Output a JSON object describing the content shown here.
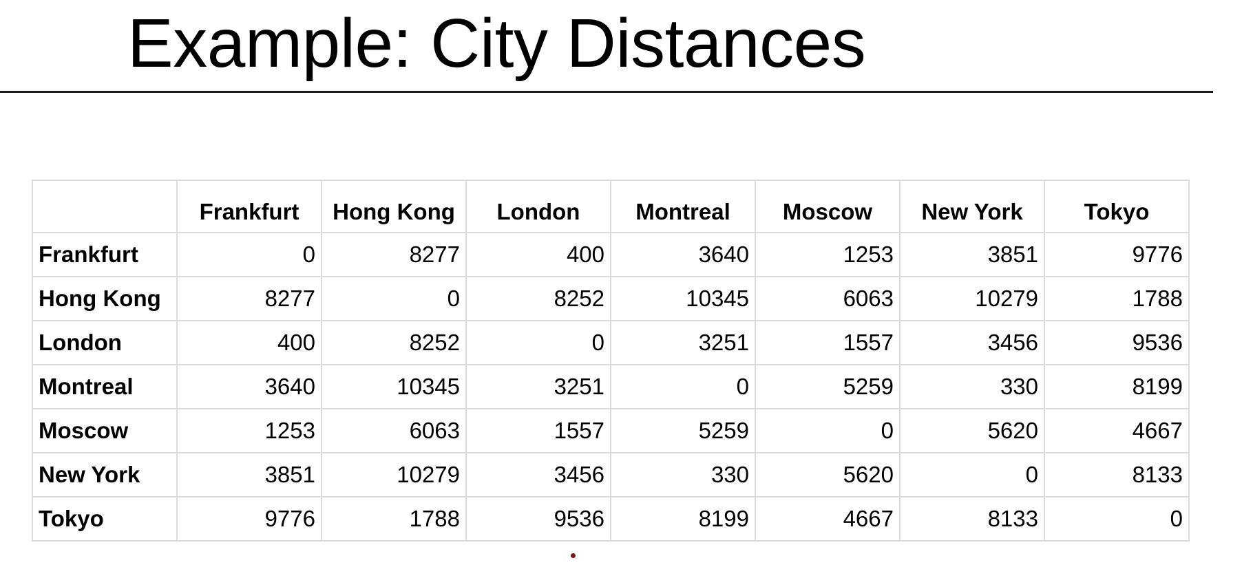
{
  "slide": {
    "title": "Example: City Distances"
  },
  "table": {
    "corner": "",
    "columns": [
      "Frankfurt",
      "Hong Kong",
      "London",
      "Montreal",
      "Moscow",
      "New York",
      "Tokyo"
    ],
    "rows": [
      {
        "label": "Frankfurt",
        "values": [
          "0",
          "8277",
          "400",
          "3640",
          "1253",
          "3851",
          "9776"
        ]
      },
      {
        "label": "Hong Kong",
        "values": [
          "8277",
          "0",
          "8252",
          "10345",
          "6063",
          "10279",
          "1788"
        ]
      },
      {
        "label": "London",
        "values": [
          "400",
          "8252",
          "0",
          "3251",
          "1557",
          "3456",
          "9536"
        ]
      },
      {
        "label": "Montreal",
        "values": [
          "3640",
          "10345",
          "3251",
          "0",
          "5259",
          "330",
          "8199"
        ]
      },
      {
        "label": "Moscow",
        "values": [
          "1253",
          "6063",
          "1557",
          "5259",
          "0",
          "5620",
          "4667"
        ]
      },
      {
        "label": "New York",
        "values": [
          "3851",
          "10279",
          "3456",
          "330",
          "5620",
          "0",
          "8133"
        ]
      },
      {
        "label": "Tokyo",
        "values": [
          "9776",
          "1788",
          "9536",
          "8199",
          "4667",
          "8133",
          "0"
        ]
      }
    ]
  },
  "colors": {
    "background": "#ffffff",
    "text": "#000000",
    "grid": "#dcdcdc",
    "pointer": "#7a1414"
  }
}
